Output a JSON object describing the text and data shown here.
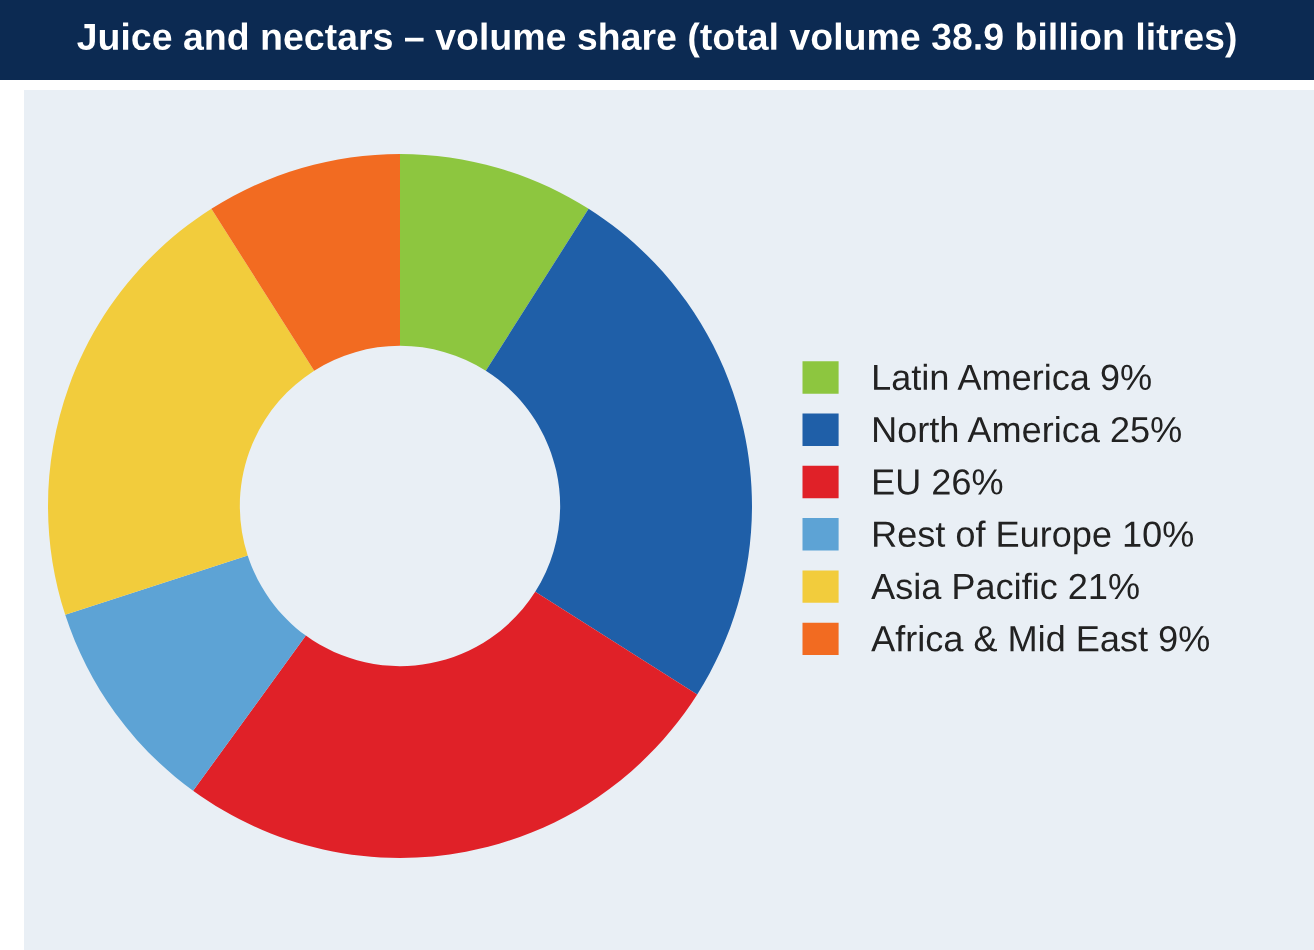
{
  "chart_data": {
    "type": "donut",
    "title": "Juice and nectars – volume share (total volume 38.9 billion litres)",
    "categories": [
      "Latin America 9%",
      "North America 25%",
      "EU 26%",
      "Rest of Europe 10%",
      "Asia Pacific 21%",
      "Africa & Mid East 9%"
    ],
    "values": [
      9,
      25,
      26,
      10,
      21,
      9
    ],
    "colors": [
      "#8dc63f",
      "#1f5fa8",
      "#e02128",
      "#5da3d5",
      "#f2cc3c",
      "#f26b21"
    ],
    "legend": "right"
  }
}
